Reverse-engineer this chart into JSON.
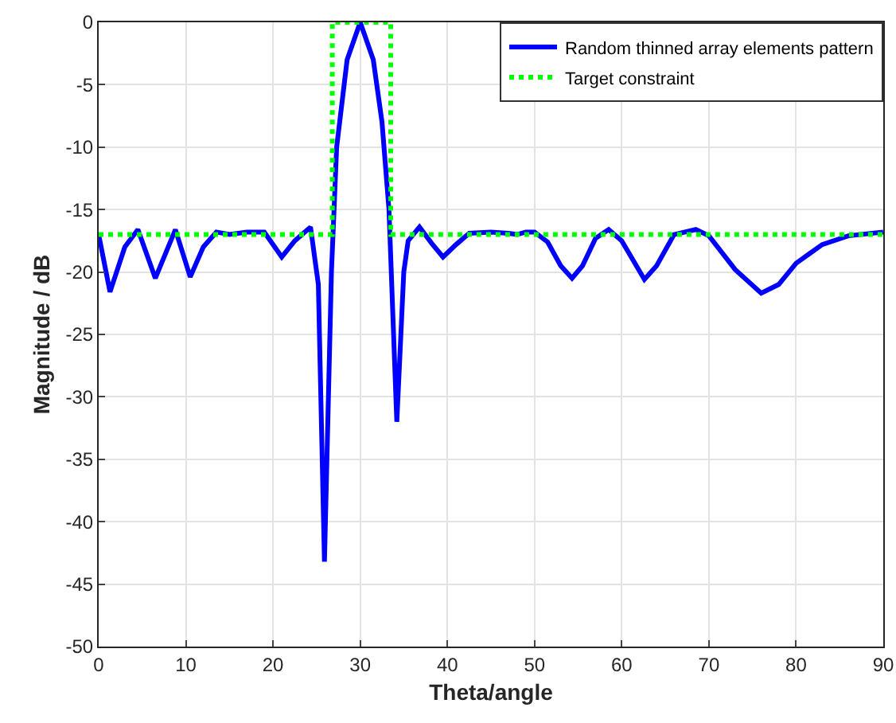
{
  "chart_data": {
    "type": "line",
    "xlabel": "Theta/angle",
    "ylabel": "Magnitude / dB",
    "xlim": [
      0,
      90
    ],
    "ylim": [
      -50,
      0
    ],
    "xticks": [
      0,
      10,
      20,
      30,
      40,
      50,
      60,
      70,
      80,
      90
    ],
    "yticks": [
      -50,
      -45,
      -40,
      -35,
      -30,
      -25,
      -20,
      -15,
      -10,
      -5,
      0
    ],
    "grid": true,
    "legend": "top right",
    "series": [
      {
        "name": "Random thinned array elements pattern",
        "color": "#0000ff",
        "line_style": "solid",
        "x": [
          0,
          1.3,
          3,
          4.5,
          6.5,
          8.8,
          10.5,
          12,
          13.5,
          15,
          17,
          19,
          21,
          22.5,
          24.3,
          25.2,
          25.9,
          26.7,
          27.3,
          28.5,
          30,
          31.5,
          32.5,
          33.3,
          34.2,
          35,
          35.5,
          36.8,
          38.2,
          39.5,
          41,
          42.5,
          45,
          47,
          48,
          49,
          50,
          51.5,
          53,
          54.3,
          55.5,
          57,
          58.5,
          60,
          62.6,
          64,
          66,
          68.5,
          70,
          73,
          76,
          78,
          80,
          83,
          86,
          90
        ],
        "values": [
          -17,
          -21.6,
          -18,
          -16.6,
          -20.5,
          -16.6,
          -20.4,
          -18,
          -16.8,
          -17,
          -16.8,
          -16.8,
          -18.8,
          -17.5,
          -16.4,
          -21,
          -43.2,
          -20,
          -10,
          -3,
          0,
          -3,
          -8,
          -15,
          -32,
          -20,
          -17.5,
          -16.4,
          -17.7,
          -18.8,
          -17.8,
          -16.9,
          -16.8,
          -16.9,
          -17,
          -16.8,
          -16.8,
          -17.6,
          -19.5,
          -20.5,
          -19.5,
          -17.3,
          -16.6,
          -17.5,
          -20.6,
          -19.5,
          -17,
          -16.6,
          -17.1,
          -19.8,
          -21.7,
          -21,
          -19.3,
          -17.8,
          -17.1,
          -16.8
        ]
      },
      {
        "name": "Target constraint",
        "color": "#00ff00",
        "line_style": "dotted",
        "x": [
          0,
          26.8,
          26.8,
          33.5,
          33.5,
          90
        ],
        "values": [
          -17,
          -17,
          0,
          0,
          -17,
          -17
        ]
      }
    ]
  }
}
